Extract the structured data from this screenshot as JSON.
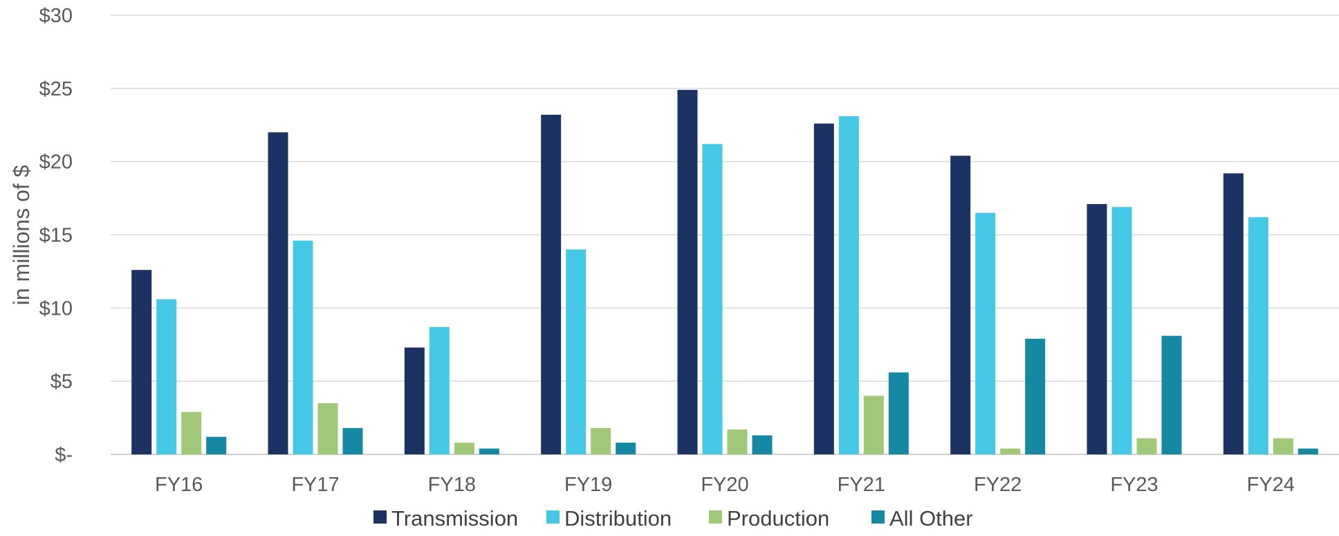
{
  "chart_data": {
    "type": "bar",
    "title": "",
    "xlabel": "",
    "ylabel": "in millions of $",
    "ylim": [
      0,
      30
    ],
    "yticks": [
      0,
      5,
      10,
      15,
      20,
      25,
      30
    ],
    "ytick_labels": [
      "$-",
      "$5",
      "$10",
      "$15",
      "$20",
      "$25",
      "$30"
    ],
    "grid": true,
    "legend_position": "bottom",
    "categories": [
      "FY16",
      "FY17",
      "FY18",
      "FY19",
      "FY20",
      "FY21",
      "FY22",
      "FY23",
      "FY24"
    ],
    "series": [
      {
        "name": "Transmission",
        "color": "#1b3262",
        "values": [
          12.6,
          22.0,
          7.3,
          23.2,
          24.9,
          22.6,
          20.4,
          17.1,
          19.2
        ]
      },
      {
        "name": "Distribution",
        "color": "#45c8e6",
        "values": [
          10.6,
          14.6,
          8.7,
          14.0,
          21.2,
          23.1,
          16.5,
          16.9,
          16.2
        ]
      },
      {
        "name": "Production",
        "color": "#a0c878",
        "values": [
          2.9,
          3.5,
          0.8,
          1.8,
          1.7,
          4.0,
          0.4,
          1.1,
          1.1
        ]
      },
      {
        "name": "All Other",
        "color": "#1589a3",
        "values": [
          1.2,
          1.8,
          0.4,
          0.8,
          1.3,
          5.6,
          7.9,
          8.1,
          0.4
        ]
      }
    ]
  }
}
